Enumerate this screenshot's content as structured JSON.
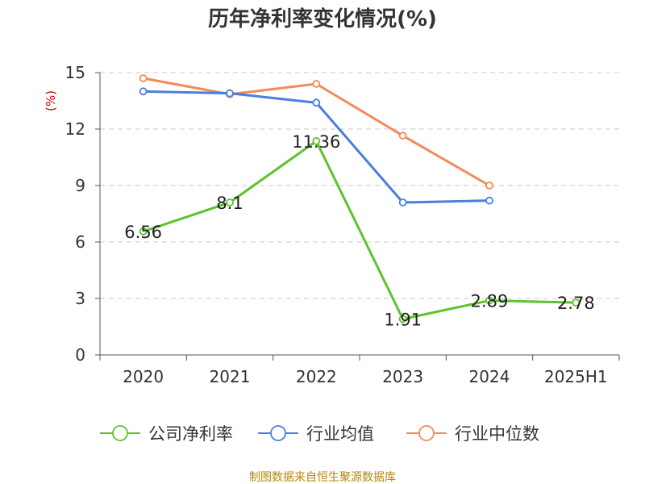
{
  "chart_data": {
    "type": "line",
    "title": "历年净利率变化情况(%)",
    "ylabel": "(%)",
    "xlabel": "",
    "categories": [
      "2020",
      "2021",
      "2022",
      "2023",
      "2024",
      "2025H1"
    ],
    "ylim": [
      0,
      15
    ],
    "yticks": [
      0,
      3,
      6,
      9,
      12,
      15
    ],
    "grid": "horizontal-dashed",
    "legend_position": "bottom",
    "series": [
      {
        "name": "公司净利率",
        "color": "#5ec22d",
        "values": [
          6.56,
          8.1,
          11.36,
          1.91,
          2.89,
          2.78
        ],
        "labels": [
          "6.56",
          "8.1",
          "11.36",
          "1.91",
          "2.89",
          "2.78"
        ]
      },
      {
        "name": "行业均值",
        "color": "#4a7fdb",
        "values": [
          14.0,
          13.9,
          13.4,
          8.1,
          8.2,
          null
        ]
      },
      {
        "name": "行业中位数",
        "color": "#f28b59",
        "values": [
          14.7,
          13.85,
          14.4,
          11.65,
          9.0,
          null
        ]
      }
    ]
  },
  "source_text": "制图数据来自恒生聚源数据库"
}
